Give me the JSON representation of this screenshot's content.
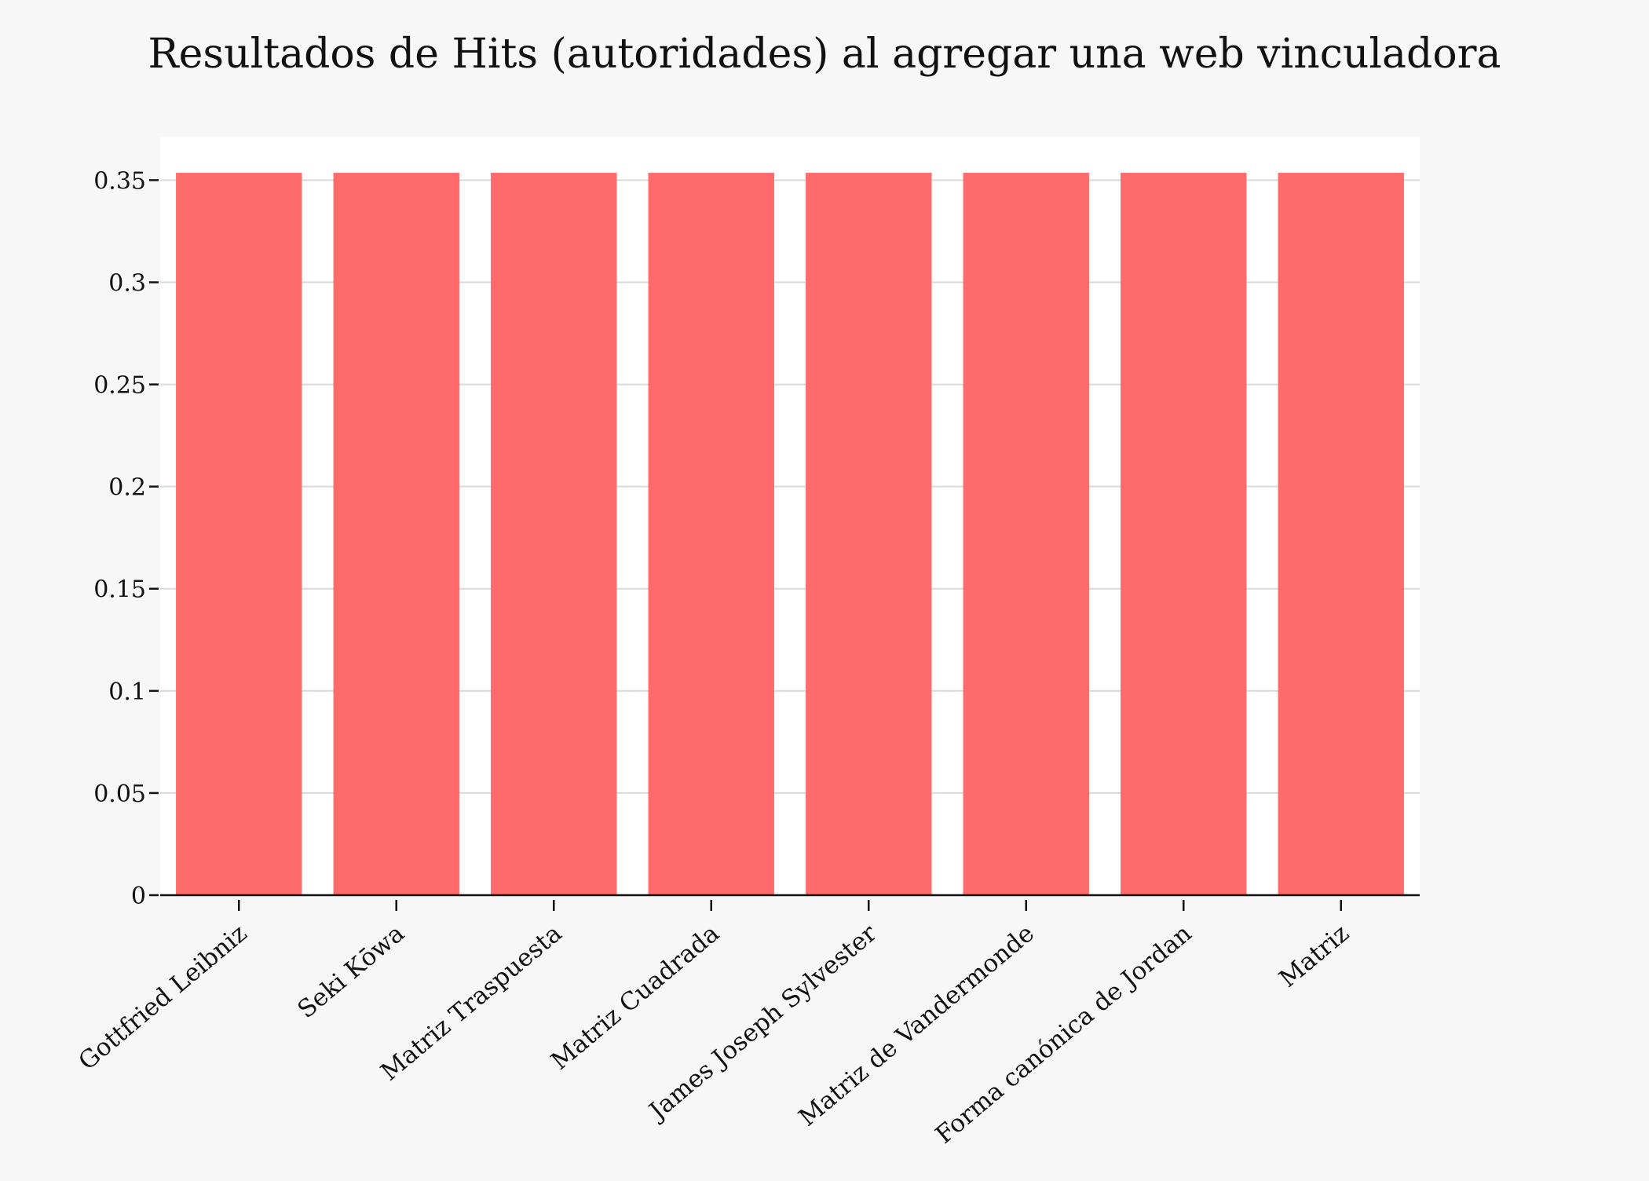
{
  "chart_data": {
    "type": "bar",
    "title": "Resultados de Hits (autoridades) al agregar una web vinculadora",
    "xlabel": "",
    "ylabel": "",
    "categories": [
      "Gottfried Leibniz",
      "Seki Kōwa",
      "Matriz Traspuesta",
      "Matriz Cuadrada",
      "James Joseph Sylvester",
      "Matriz de Vandermonde",
      "Forma canónica de Jordan",
      "Matriz"
    ],
    "values": [
      0.3536,
      0.3536,
      0.3536,
      0.3536,
      0.3536,
      0.3536,
      0.3536,
      0.3536
    ],
    "ylim": [
      0,
      0.3713
    ],
    "yticks": [
      "0",
      "0.05",
      "0.1",
      "0.15",
      "0.2",
      "0.25",
      "0.3",
      "0.35"
    ],
    "ytick_values": [
      0,
      0.05,
      0.1,
      0.15,
      0.2,
      0.25,
      0.3,
      0.35
    ],
    "grid": true,
    "legend": "none",
    "colors": {
      "bar": "#ff6b6b",
      "plot_bg": "#ffffff",
      "page_bg": "#f7f7f7",
      "grid": "#d9d9d9",
      "axis": "#111111"
    }
  }
}
